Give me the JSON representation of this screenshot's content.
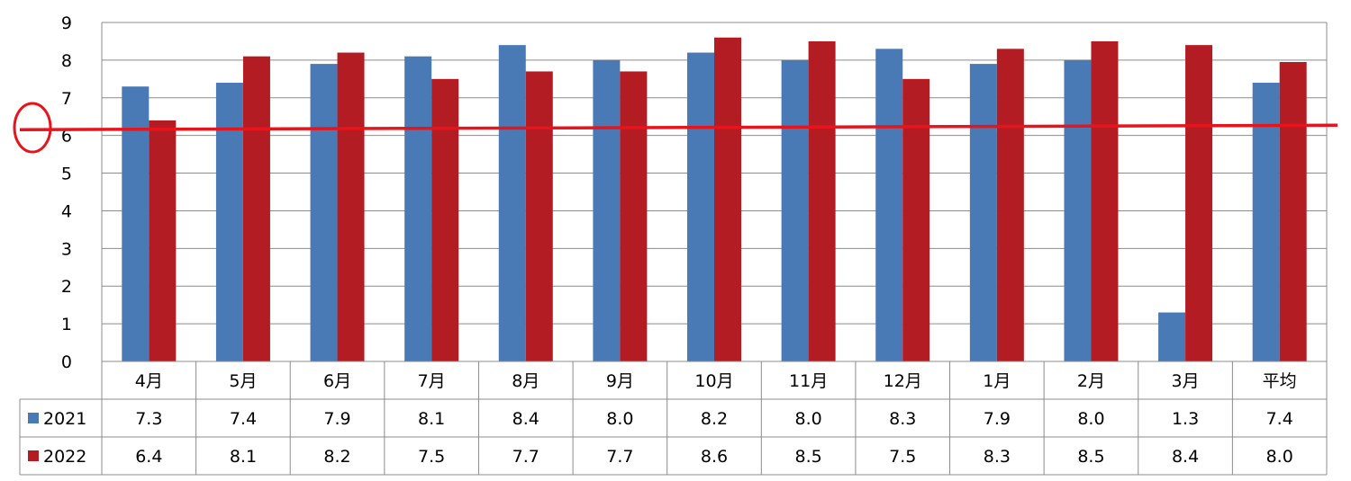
{
  "chart_data": {
    "type": "bar",
    "categories": [
      "4月",
      "5月",
      "6月",
      "7月",
      "8月",
      "9月",
      "10月",
      "11月",
      "12月",
      "1月",
      "2月",
      "3月",
      "平均"
    ],
    "series": [
      {
        "name": "2021",
        "color": "#4a7ab5",
        "values": [
          7.3,
          7.4,
          7.9,
          8.1,
          8.4,
          8.0,
          8.2,
          8.0,
          8.3,
          7.9,
          8.0,
          1.3,
          7.4
        ],
        "labels": [
          "7.3",
          "7.4",
          "7.9",
          "8.1",
          "8.4",
          "8.0",
          "8.2",
          "8.0",
          "8.3",
          "7.9",
          "8.0",
          "1.3",
          "7.4"
        ]
      },
      {
        "name": "2022",
        "color": "#b41c24",
        "values": [
          6.4,
          8.1,
          8.2,
          7.5,
          7.7,
          7.7,
          8.6,
          8.5,
          7.5,
          8.3,
          8.5,
          8.4,
          7.95
        ],
        "labels": [
          "6.4",
          "8.1",
          "8.2",
          "7.5",
          "7.7",
          "7.7",
          "8.6",
          "8.5",
          "7.5",
          "8.3",
          "8.5",
          "8.4",
          "8.0"
        ]
      }
    ],
    "yticks": [
      "0",
      "1",
      "2",
      "3",
      "4",
      "5",
      "6",
      "7",
      "8",
      "9"
    ],
    "ylim": [
      0,
      9
    ],
    "grid": true,
    "legend": "data-table",
    "annotation": {
      "reference_line_value": 6.2,
      "color": "#e8141b",
      "circle_marker": true
    }
  }
}
